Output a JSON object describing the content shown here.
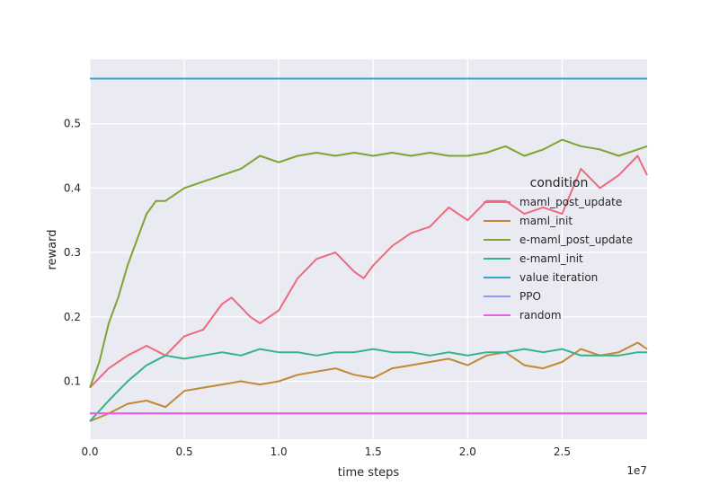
{
  "chart_data": {
    "type": "line",
    "xlabel": "time steps",
    "ylabel": "reward",
    "x_offset_label": "1e7",
    "xlim": [
      0,
      2.95
    ],
    "ylim": [
      0.01,
      0.6
    ],
    "xticks": [
      "0.0",
      "0.5",
      "1.0",
      "1.5",
      "2.0",
      "2.5"
    ],
    "yticks": [
      "0.1",
      "0.2",
      "0.3",
      "0.4",
      "0.5"
    ],
    "grid": true,
    "background": "#eaeaf2",
    "legend": {
      "title": "condition",
      "placement": "center-right"
    },
    "series": [
      {
        "name": "maml_post_update",
        "color": "#f0697c",
        "x": [
          0.0,
          0.1,
          0.2,
          0.3,
          0.4,
          0.5,
          0.6,
          0.7,
          0.75,
          0.85,
          0.9,
          1.0,
          1.1,
          1.2,
          1.3,
          1.4,
          1.45,
          1.5,
          1.6,
          1.7,
          1.8,
          1.9,
          2.0,
          2.1,
          2.2,
          2.3,
          2.4,
          2.5,
          2.6,
          2.7,
          2.8,
          2.9,
          2.95
        ],
        "y": [
          0.09,
          0.12,
          0.14,
          0.155,
          0.14,
          0.17,
          0.18,
          0.22,
          0.23,
          0.2,
          0.19,
          0.21,
          0.26,
          0.29,
          0.3,
          0.27,
          0.26,
          0.28,
          0.31,
          0.33,
          0.34,
          0.37,
          0.35,
          0.38,
          0.38,
          0.36,
          0.37,
          0.36,
          0.43,
          0.4,
          0.42,
          0.45,
          0.42
        ]
      },
      {
        "name": "maml_init",
        "color": "#c08a35",
        "x": [
          0.0,
          0.1,
          0.2,
          0.3,
          0.4,
          0.5,
          0.6,
          0.7,
          0.8,
          0.9,
          1.0,
          1.1,
          1.2,
          1.3,
          1.4,
          1.5,
          1.6,
          1.7,
          1.8,
          1.9,
          2.0,
          2.1,
          2.2,
          2.3,
          2.4,
          2.5,
          2.6,
          2.7,
          2.8,
          2.9,
          2.95
        ],
        "y": [
          0.038,
          0.05,
          0.065,
          0.07,
          0.06,
          0.085,
          0.09,
          0.095,
          0.1,
          0.095,
          0.1,
          0.11,
          0.115,
          0.12,
          0.11,
          0.105,
          0.12,
          0.125,
          0.13,
          0.135,
          0.125,
          0.14,
          0.145,
          0.125,
          0.12,
          0.13,
          0.15,
          0.14,
          0.145,
          0.16,
          0.15
        ]
      },
      {
        "name": "e-maml_post_update",
        "color": "#7ea432",
        "x": [
          0.0,
          0.05,
          0.1,
          0.15,
          0.2,
          0.25,
          0.3,
          0.35,
          0.4,
          0.5,
          0.6,
          0.7,
          0.8,
          0.9,
          1.0,
          1.1,
          1.2,
          1.3,
          1.4,
          1.5,
          1.6,
          1.7,
          1.8,
          1.9,
          2.0,
          2.1,
          2.2,
          2.3,
          2.4,
          2.5,
          2.6,
          2.7,
          2.8,
          2.9,
          2.95
        ],
        "y": [
          0.09,
          0.13,
          0.19,
          0.23,
          0.28,
          0.32,
          0.36,
          0.38,
          0.38,
          0.4,
          0.41,
          0.42,
          0.43,
          0.45,
          0.44,
          0.45,
          0.455,
          0.45,
          0.455,
          0.45,
          0.455,
          0.45,
          0.455,
          0.45,
          0.45,
          0.455,
          0.465,
          0.45,
          0.46,
          0.475,
          0.465,
          0.46,
          0.45,
          0.46,
          0.465
        ]
      },
      {
        "name": "e-maml_init",
        "color": "#32b38c",
        "x": [
          0.0,
          0.1,
          0.2,
          0.3,
          0.4,
          0.5,
          0.6,
          0.7,
          0.8,
          0.9,
          1.0,
          1.1,
          1.2,
          1.3,
          1.4,
          1.5,
          1.6,
          1.7,
          1.8,
          1.9,
          2.0,
          2.1,
          2.2,
          2.3,
          2.4,
          2.5,
          2.6,
          2.7,
          2.8,
          2.9,
          2.95
        ],
        "y": [
          0.038,
          0.07,
          0.1,
          0.125,
          0.14,
          0.135,
          0.14,
          0.145,
          0.14,
          0.15,
          0.145,
          0.145,
          0.14,
          0.145,
          0.145,
          0.15,
          0.145,
          0.145,
          0.14,
          0.145,
          0.14,
          0.145,
          0.145,
          0.15,
          0.145,
          0.15,
          0.14,
          0.14,
          0.14,
          0.145,
          0.145
        ]
      },
      {
        "name": "value iteration",
        "color": "#3aa5c8",
        "x": [
          0.0,
          2.95
        ],
        "y": [
          0.57,
          0.57
        ]
      },
      {
        "name": "PPO",
        "color": "#8b9cf0",
        "x": [
          0.0,
          2.95
        ],
        "y": [
          0.05,
          0.05
        ]
      },
      {
        "name": "random",
        "color": "#e860e8",
        "x": [
          0.0,
          2.95
        ],
        "y": [
          0.05,
          0.05
        ]
      }
    ]
  }
}
